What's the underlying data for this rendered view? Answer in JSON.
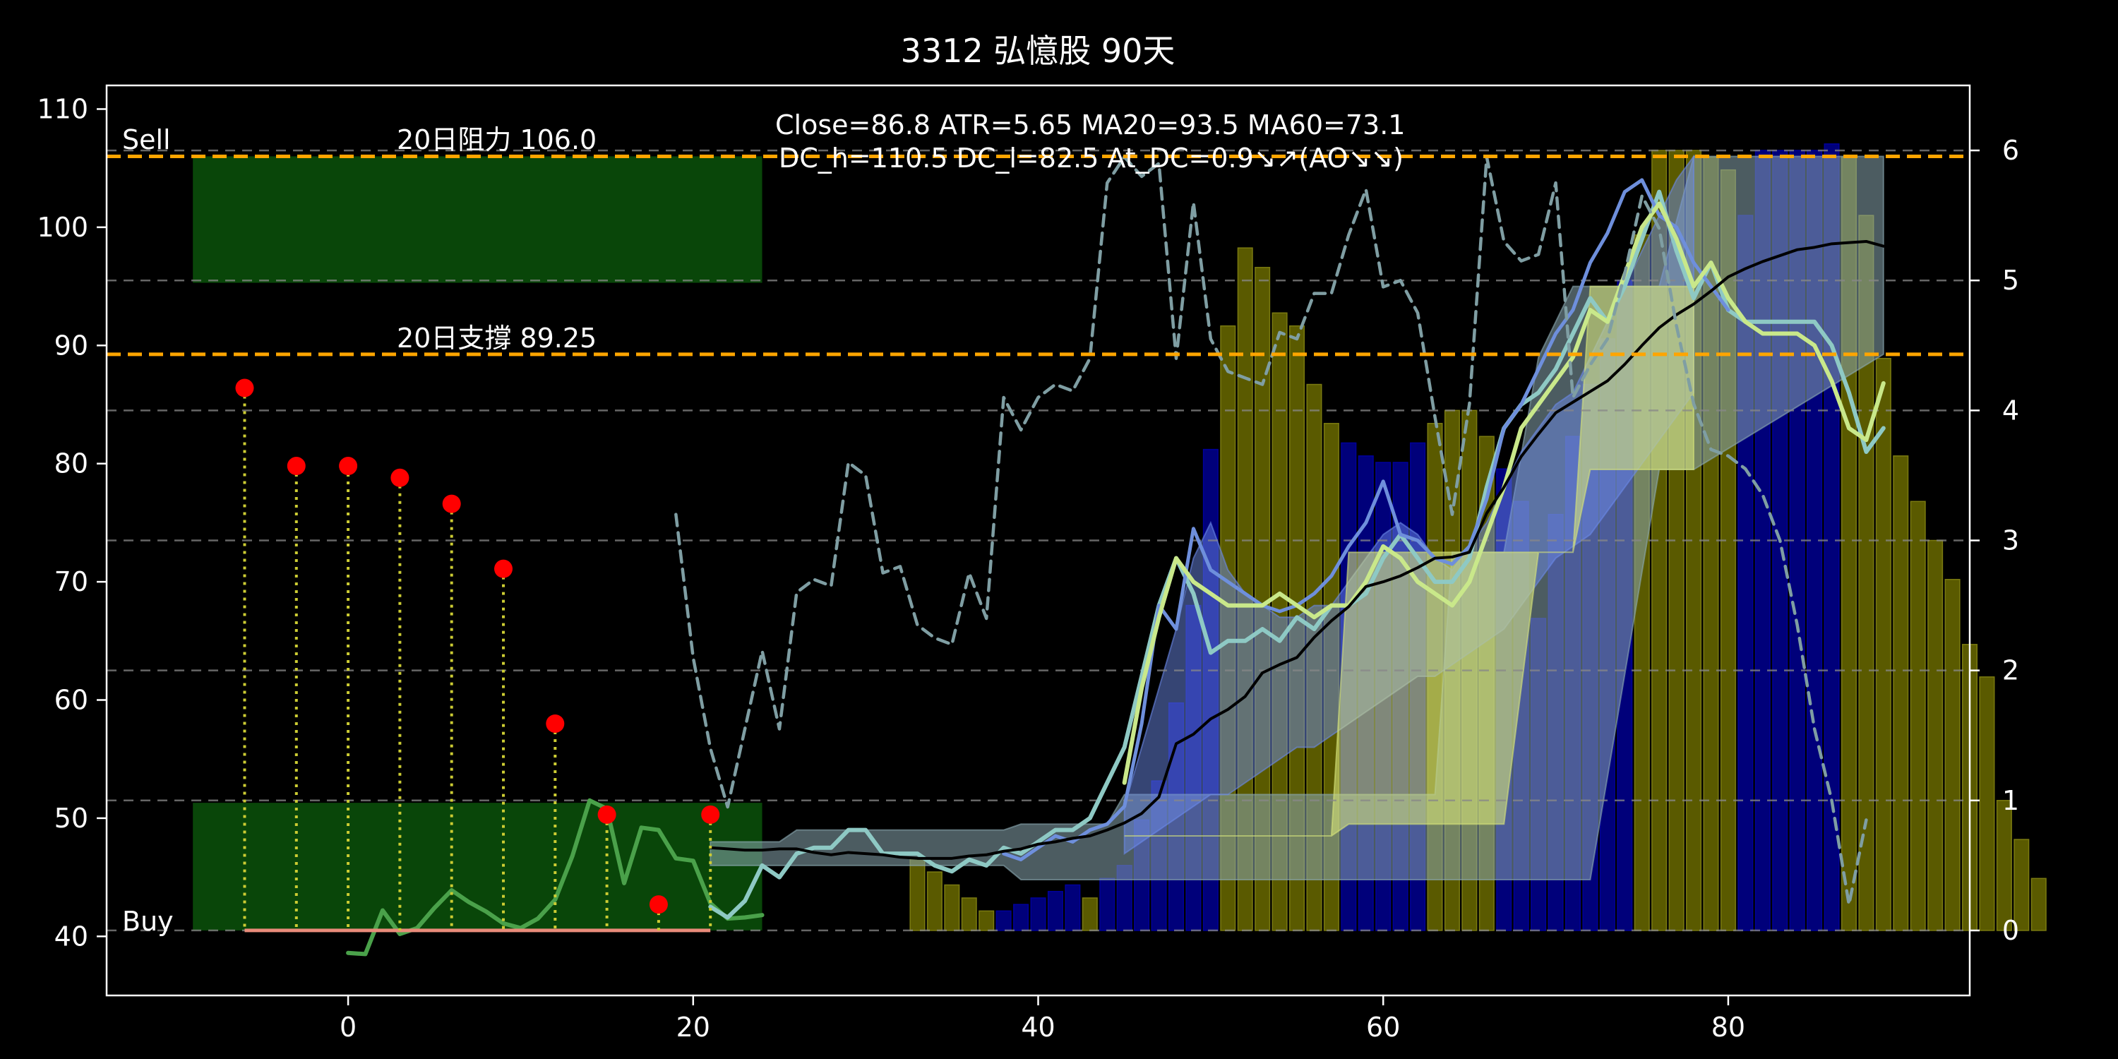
{
  "chart_data": {
    "type": "bar",
    "title": "3312 弘憶股 90天",
    "xlabel": "",
    "ylabel": "",
    "xlim": [
      -14,
      94
    ],
    "ylim": [
      35,
      112
    ],
    "y2lim": [
      -0.5,
      6.5
    ],
    "x_ticks": [
      0,
      20,
      40,
      60,
      80
    ],
    "y_ticks": [
      40,
      50,
      60,
      70,
      80,
      90,
      100,
      110
    ],
    "y2_ticks": [
      0,
      1,
      2,
      3,
      4,
      5,
      6
    ],
    "annotations": {
      "sell": "Sell",
      "buy": "Buy",
      "resistance": "20日阻力 106.0",
      "support": "20日支撐 89.25",
      "stats_line1": "Close=86.8 ATR=5.65 MA20=93.5 MA60=73.1",
      "stats_line2": "DC_h=110.5 DC_l=82.5 At_DC=0.9↘↗(AO↘↘)"
    },
    "hlines": {
      "resistance": 106.0,
      "support": 89.25,
      "grid_right": [
        0,
        1,
        2,
        3,
        4,
        5,
        6
      ]
    },
    "zones": {
      "sell": {
        "x0": -9,
        "x1": 24,
        "y0": 95.3,
        "y1": 106.0
      },
      "buy": {
        "x0": -9,
        "x1": 24,
        "y0": 40.5,
        "y1": 51.3
      }
    },
    "ao_bars": {
      "start_x": 33,
      "values": [
        0.55,
        0.45,
        0.35,
        0.25,
        0.15,
        0.15,
        0.2,
        0.25,
        0.3,
        0.35,
        0.25,
        0.4,
        0.5,
        0.85,
        1.15,
        1.75,
        2.5,
        3.7,
        4.65,
        5.25,
        5.1,
        4.75,
        4.65,
        4.2,
        3.9,
        3.75,
        3.65,
        3.6,
        3.6,
        3.75,
        3.9,
        4.0,
        4.0,
        3.8,
        3.55,
        3.3,
        2.4,
        3.2,
        3.8,
        4.2,
        4.55,
        5.0,
        5.35,
        6.0,
        6.0,
        6.0,
        5.95,
        5.85,
        5.5,
        6.0,
        6.0,
        6.0,
        6.0,
        6.05,
        5.95,
        5.5,
        4.4,
        3.65,
        3.3,
        3.0,
        2.7,
        2.2,
        1.95,
        1.0,
        0.7,
        0.4
      ],
      "colors": [
        "#5a5a00",
        "#5a5a00",
        "#5a5a00",
        "#5a5a00",
        "#5a5a00",
        "#00007a",
        "#00007a",
        "#00007a",
        "#00007a",
        "#00007a",
        "#5a5a00",
        "#00007a",
        "#00007a",
        "#00007a",
        "#00007a",
        "#00007a",
        "#00007a",
        "#00007a",
        "#5a5a00",
        "#5a5a00",
        "#5a5a00",
        "#5a5a00",
        "#5a5a00",
        "#5a5a00",
        "#5a5a00",
        "#00007a",
        "#00007a",
        "#00007a",
        "#00007a",
        "#00007a",
        "#5a5a00",
        "#5a5a00",
        "#5a5a00",
        "#5a5a00",
        "#00007a",
        "#00007a",
        "#00007a",
        "#00007a",
        "#00007a",
        "#00007a",
        "#00007a",
        "#00007a",
        "#5a5a00",
        "#5a5a00",
        "#5a5a00",
        "#5a5a00",
        "#5a5a00",
        "#5a5a00",
        "#00007a",
        "#00007a",
        "#00007a",
        "#00007a",
        "#00007a",
        "#00007a",
        "#5a5a00",
        "#5a5a00",
        "#5a5a00",
        "#5a5a00",
        "#5a5a00",
        "#5a5a00",
        "#5a5a00",
        "#5a5a00",
        "#5a5a00",
        "#5a5a00",
        "#5a5a00",
        "#5a5a00"
      ]
    },
    "dc_band_outer": {
      "x": [
        21,
        24,
        25,
        26,
        38,
        39,
        44,
        45,
        53,
        54,
        63,
        64,
        67,
        69,
        71,
        72,
        76,
        78,
        89
      ],
      "upper": [
        48,
        48,
        48,
        49,
        49,
        49.5,
        49.5,
        52,
        52,
        52,
        52,
        72.5,
        72.5,
        89,
        95,
        95,
        95,
        106,
        106
      ],
      "lower": [
        46,
        46,
        46,
        46,
        46,
        44.8,
        44.8,
        44.8,
        44.8,
        44.8,
        44.8,
        44.8,
        44.8,
        44.8,
        44.8,
        44.8,
        79.5,
        79.5,
        89.25
      ]
    },
    "dc_band_inner": {
      "x": [
        45,
        50,
        53,
        54,
        57,
        58,
        63,
        65,
        66,
        67,
        69,
        71,
        72,
        78
      ],
      "upper": [
        48.5,
        48.5,
        48.5,
        48.5,
        48.5,
        72.5,
        72.5,
        72.5,
        72.5,
        72.5,
        72.5,
        72.5,
        95,
        95
      ],
      "lower": [
        48.5,
        48.5,
        48.5,
        48.5,
        48.5,
        49.5,
        49.5,
        49.5,
        49.5,
        49.5,
        72.5,
        72.5,
        79.5,
        79.5
      ]
    },
    "kc_band": {
      "x": [
        45,
        46,
        47,
        48,
        49,
        50,
        51,
        52,
        53,
        54,
        55,
        56,
        57,
        58,
        59,
        60,
        61,
        62,
        63,
        64,
        65,
        66,
        67,
        68,
        69,
        70,
        71,
        72,
        73,
        74,
        75,
        76,
        77,
        78
      ],
      "upper": [
        51,
        56,
        61,
        66,
        72,
        75,
        71,
        69,
        68,
        67,
        67,
        68,
        68,
        70,
        72,
        74,
        75,
        74,
        72,
        71,
        73,
        75,
        78,
        81,
        83,
        85,
        86,
        89,
        92,
        95,
        98,
        101,
        104,
        106
      ],
      "lower": [
        47,
        48,
        49,
        50,
        51,
        52,
        52,
        53,
        54,
        55,
        56,
        56,
        57,
        58,
        59,
        60,
        61,
        62,
        62,
        63,
        64,
        65,
        66,
        68,
        70,
        72,
        73,
        74,
        76,
        78,
        80,
        82,
        84,
        86
      ]
    },
    "series": [
      {
        "name": "",
        "color": "#4aa14a",
        "width": 6,
        "dash": "",
        "x": [
          0,
          1,
          2,
          3,
          4,
          5,
          6,
          7,
          8,
          9,
          10,
          11,
          12,
          13,
          14,
          15,
          16,
          17,
          18,
          19,
          20,
          21,
          22,
          23,
          24
        ],
        "y": [
          38.6,
          38.5,
          42.2,
          40.2,
          40.7,
          42.4,
          43.9,
          42.9,
          42.1,
          41.1,
          40.7,
          41.5,
          43.1,
          46.8,
          51.5,
          50.8,
          44.5,
          49.2,
          49.0,
          46.6,
          46.4,
          42.8,
          41.5,
          41.6,
          41.8
        ]
      },
      {
        "name": "",
        "color": "#8ec9c4",
        "width": 6,
        "dash": "",
        "x": [
          21,
          22,
          23,
          24,
          25,
          26,
          27,
          28,
          29,
          30,
          31,
          32,
          33,
          34,
          35,
          36,
          37,
          38,
          39,
          40,
          41,
          42,
          43,
          44,
          45,
          46,
          47,
          48,
          49,
          50,
          51,
          52,
          53,
          54,
          55,
          56,
          57,
          58,
          59,
          60,
          61,
          62,
          63,
          64,
          65,
          66,
          67,
          68,
          69,
          70,
          71,
          72,
          73,
          74,
          75,
          76,
          77,
          78,
          79,
          80,
          81,
          82,
          83,
          84,
          85,
          86,
          87,
          88,
          89
        ],
        "y": [
          42.5,
          41.6,
          43,
          46,
          45,
          47,
          47.5,
          47.5,
          49,
          49,
          47,
          47,
          47,
          46,
          45.5,
          46.5,
          46,
          47.5,
          47,
          48,
          49,
          49,
          50,
          53,
          56,
          62,
          68,
          72,
          69,
          64,
          65,
          65,
          66,
          65,
          67,
          66,
          68,
          68,
          69,
          72,
          74,
          72,
          70,
          70,
          72,
          78,
          83,
          85,
          86,
          88,
          91,
          94,
          92,
          95,
          99,
          103,
          98,
          94,
          97,
          93,
          92,
          92,
          92,
          92,
          92,
          90,
          86,
          81,
          83
        ]
      },
      {
        "name": "",
        "color": "#6e8fdc",
        "width": 5,
        "dash": "",
        "x": [
          38,
          39,
          40,
          41,
          42,
          43,
          44,
          45,
          46,
          47,
          48,
          49,
          50,
          51,
          52,
          53,
          54,
          55,
          56,
          57,
          58,
          59,
          60,
          61,
          62,
          63,
          64,
          65,
          66,
          67,
          68,
          69,
          70,
          71,
          72,
          73,
          74,
          75,
          76,
          77,
          78,
          79,
          80
        ],
        "y": [
          47,
          46.5,
          47.5,
          48.5,
          48,
          49,
          49.5,
          51,
          58,
          68,
          66,
          74.5,
          71,
          70,
          69,
          68,
          67.5,
          68,
          69,
          70.5,
          73,
          75,
          78.5,
          74,
          73.5,
          72,
          71.5,
          73,
          77,
          83,
          85,
          88,
          91,
          93,
          97,
          99.5,
          103,
          104,
          101,
          100,
          97,
          95,
          93
        ]
      },
      {
        "name": "",
        "color": "#c9e88a",
        "width": 6,
        "dash": "",
        "x": [
          45,
          46,
          47,
          48,
          49,
          50,
          51,
          52,
          53,
          54,
          55,
          56,
          57,
          58,
          59,
          60,
          61,
          62,
          63,
          64,
          65,
          66,
          67,
          68,
          69,
          70,
          71,
          72,
          73,
          74,
          75,
          76,
          77,
          78,
          79,
          80,
          81,
          82,
          83,
          84,
          85,
          86,
          87,
          88,
          89
        ],
        "y": [
          53,
          61,
          67,
          72,
          70,
          69,
          68,
          68,
          68,
          69,
          68,
          67,
          68,
          68,
          70,
          73,
          72,
          70,
          69,
          68,
          70,
          74,
          78,
          83,
          85,
          87,
          89,
          93,
          92,
          96,
          100,
          102,
          99,
          95,
          97,
          94,
          92,
          91,
          91,
          91,
          90,
          87,
          83,
          82,
          86.8
        ]
      },
      {
        "name": "",
        "color": "#000000",
        "width": 4,
        "dash": "",
        "x": [
          21,
          22,
          23,
          24,
          25,
          26,
          27,
          28,
          29,
          30,
          31,
          32,
          33,
          34,
          35,
          36,
          37,
          38,
          39,
          40,
          41,
          42,
          43,
          44,
          45,
          46,
          47,
          48,
          49,
          50,
          51,
          52,
          53,
          54,
          55,
          56,
          57,
          58,
          59,
          60,
          61,
          62,
          63,
          64,
          65,
          66,
          67,
          68,
          69,
          70,
          71,
          72,
          73,
          74,
          75,
          76,
          77,
          78,
          79,
          80,
          81,
          82,
          83,
          84,
          85,
          86,
          87,
          88,
          89
        ],
        "y": [
          47.5,
          47.4,
          47.3,
          47.3,
          47.4,
          47.4,
          47.1,
          46.9,
          47.1,
          47.0,
          46.9,
          46.7,
          46.6,
          46.6,
          46.6,
          46.8,
          46.9,
          47.2,
          47.4,
          47.8,
          48.0,
          48.3,
          48.5,
          49.0,
          49.6,
          50.4,
          51.8,
          56.3,
          57.1,
          58.4,
          59.2,
          60.3,
          62.3,
          63.0,
          63.6,
          65.3,
          66.7,
          67.9,
          69.6,
          70.0,
          70.5,
          71.2,
          72.0,
          72.1,
          72.5,
          75.8,
          78.0,
          80.6,
          82.5,
          84.3,
          85.2,
          86.1,
          87.0,
          88.4,
          90.0,
          91.5,
          92.6,
          93.5,
          94.6,
          95.8,
          96.5,
          97.1,
          97.6,
          98.1,
          98.3,
          98.6,
          98.7,
          98.8,
          98.4
        ]
      },
      {
        "name": "",
        "color": "#7f9ea3",
        "width": 4.5,
        "dash": "16 10",
        "x": [
          19,
          20,
          21,
          22,
          23,
          24,
          25,
          26,
          27,
          28,
          29,
          30,
          31,
          32,
          33,
          34,
          35,
          36,
          37,
          38,
          39,
          40,
          41,
          42,
          43,
          44,
          45,
          46,
          47,
          48,
          49,
          50,
          51,
          52,
          53,
          54,
          55,
          56,
          57,
          58,
          59,
          60,
          61,
          62,
          63,
          64,
          65,
          66,
          67,
          68,
          69,
          70,
          71,
          72,
          73,
          74,
          75,
          76,
          77,
          78,
          79,
          80,
          81,
          82,
          83,
          84,
          85,
          86,
          87,
          88,
          89
        ],
        "y2": [
          3.2,
          2.1,
          1.4,
          0.95,
          1.55,
          2.15,
          1.55,
          2.6,
          2.7,
          2.65,
          3.6,
          3.5,
          2.75,
          2.8,
          2.35,
          2.25,
          2.2,
          2.75,
          2.4,
          4.1,
          3.85,
          4.1,
          4.2,
          4.15,
          4.4,
          5.75,
          5.95,
          5.8,
          5.9,
          4.4,
          5.6,
          4.55,
          4.3,
          4.25,
          4.2,
          4.6,
          4.55,
          4.9,
          4.9,
          5.35,
          5.7,
          4.95,
          5.0,
          4.75,
          3.95,
          3.2,
          4.05,
          5.95,
          5.3,
          5.15,
          5.2,
          5.75,
          4.1,
          4.35,
          4.55,
          5.05,
          5.65,
          5.4,
          4.65,
          4.05,
          3.7,
          3.65,
          3.55,
          3.35,
          3.0,
          2.35,
          1.55,
          1.0,
          0.2,
          0.85
        ]
      }
    ],
    "rsi": {
      "color": "#ff0000",
      "stem_color": "#cccc33",
      "x": [
        -6,
        -3,
        0,
        3,
        6,
        9,
        12,
        15,
        18,
        21
      ],
      "y": [
        86.4,
        79.8,
        79.8,
        78.8,
        76.6,
        71.1,
        58.0,
        50.3,
        42.7,
        50.3
      ],
      "base": 40.5,
      "base_color": "#e98b7a"
    },
    "colors": {
      "background": "#000000",
      "axes": "#ffffff",
      "resistance": "#ffa500",
      "zone": "#0a4a0a",
      "dc_outer": "#8aa8b0",
      "dc_inner": "#d6e37a",
      "kc": "#6b89e8",
      "grid": "#888888"
    }
  }
}
